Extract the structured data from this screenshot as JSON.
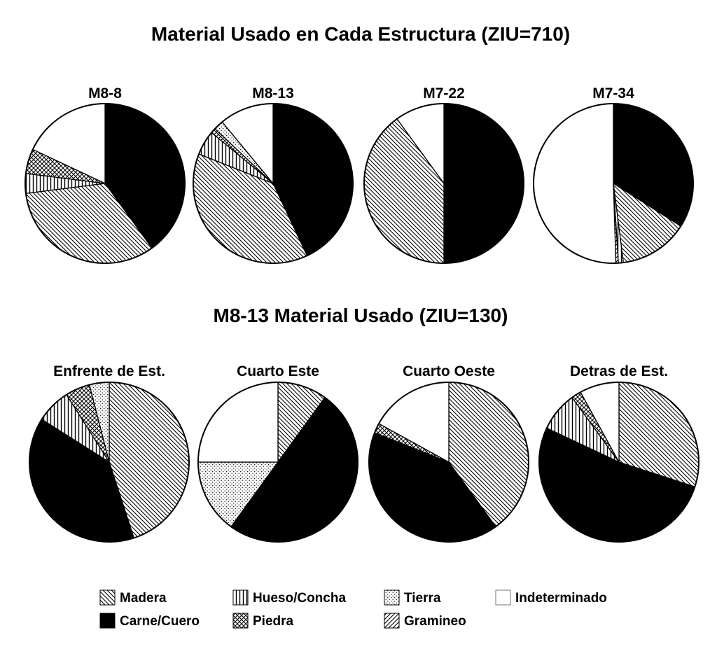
{
  "categories": [
    {
      "key": "madera",
      "label": "Madera",
      "pattern": "diag-left"
    },
    {
      "key": "carne",
      "label": "Carne/Cuero",
      "pattern": "solid"
    },
    {
      "key": "hueso",
      "label": "Hueso/Concha",
      "pattern": "vertical"
    },
    {
      "key": "piedra",
      "label": "Piedra",
      "pattern": "crosshatch"
    },
    {
      "key": "tierra",
      "label": "Tierra",
      "pattern": "dots"
    },
    {
      "key": "gramineo",
      "label": "Gramineo",
      "pattern": "diag-right"
    },
    {
      "key": "indet",
      "label": "Indeterminado",
      "pattern": "blank"
    }
  ],
  "colors": {
    "ink": "#000000",
    "paper": "#ffffff"
  },
  "chart_data": [
    {
      "type": "pie",
      "title": "Material Usado en Cada Estructura (ZIU=710)",
      "pies": [
        {
          "name": "M8-8",
          "slices": [
            {
              "category": "carne",
              "value": 40
            },
            {
              "category": "madera",
              "value": 33
            },
            {
              "category": "hueso",
              "value": 4
            },
            {
              "category": "piedra",
              "value": 5
            },
            {
              "category": "indet",
              "value": 18
            }
          ]
        },
        {
          "name": "M8-13",
          "slices": [
            {
              "category": "carne",
              "value": 43
            },
            {
              "category": "madera",
              "value": 38
            },
            {
              "category": "hueso",
              "value": 5
            },
            {
              "category": "piedra",
              "value": 1
            },
            {
              "category": "tierra",
              "value": 2
            },
            {
              "category": "indet",
              "value": 11
            }
          ]
        },
        {
          "name": "M7-22",
          "slices": [
            {
              "category": "carne",
              "value": 50
            },
            {
              "category": "madera",
              "value": 40
            },
            {
              "category": "indet",
              "value": 10
            }
          ]
        },
        {
          "name": "M7-34",
          "slices": [
            {
              "category": "carne",
              "value": 34
            },
            {
              "category": "madera",
              "value": 14
            },
            {
              "category": "hueso",
              "value": 1
            },
            {
              "category": "gramineo",
              "value": 0.5
            },
            {
              "category": "indet",
              "value": 50.5
            }
          ]
        }
      ]
    },
    {
      "type": "pie",
      "title": "M8-13  Material Usado (ZIU=130)",
      "pies": [
        {
          "name": "Enfrente de Est.",
          "slices": [
            {
              "category": "madera",
              "value": 45
            },
            {
              "category": "carne",
              "value": 39
            },
            {
              "category": "hueso",
              "value": 7
            },
            {
              "category": "piedra",
              "value": 5
            },
            {
              "category": "tierra",
              "value": 4
            }
          ]
        },
        {
          "name": "Cuarto Este",
          "slices": [
            {
              "category": "madera",
              "value": 10
            },
            {
              "category": "carne",
              "value": 50
            },
            {
              "category": "tierra",
              "value": 15
            },
            {
              "category": "indet",
              "value": 25
            }
          ]
        },
        {
          "name": "Cuarto Oeste",
          "slices": [
            {
              "category": "madera",
              "value": 40
            },
            {
              "category": "carne",
              "value": 41
            },
            {
              "category": "piedra",
              "value": 2
            },
            {
              "category": "indet",
              "value": 17
            }
          ]
        },
        {
          "name": "Detras de Est.",
          "slices": [
            {
              "category": "madera",
              "value": 30
            },
            {
              "category": "carne",
              "value": 52
            },
            {
              "category": "hueso",
              "value": 8
            },
            {
              "category": "piedra",
              "value": 2
            },
            {
              "category": "indet",
              "value": 8
            }
          ]
        }
      ]
    }
  ]
}
